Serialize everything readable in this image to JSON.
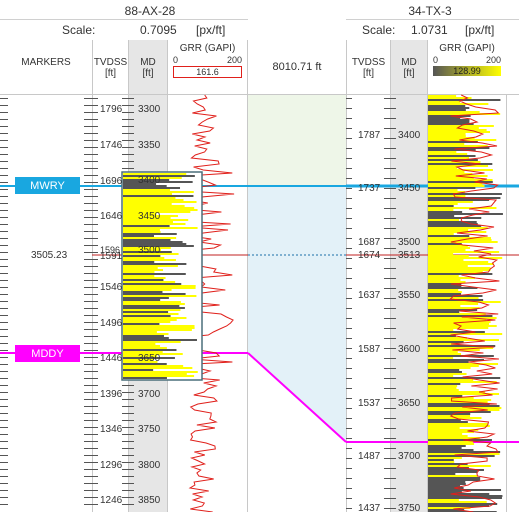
{
  "left_well": {
    "name": "88-AX-28",
    "scale_label": "Scale:",
    "scale_value": "0.7095",
    "scale_unit": "[px/ft]",
    "columns": {
      "markers": "MARKERS",
      "tvdss": "TVDSS",
      "tvdss_unit": "[ft]",
      "md": "MD",
      "md_unit": "[ft]",
      "grr": "GRR (GAPI)",
      "grr_readout": "161.6"
    },
    "tvdss_ticks": [
      "1796",
      "1746",
      "1696",
      "1646",
      "1596",
      "1591",
      "1546",
      "1496",
      "1446",
      "1396",
      "1346",
      "1296",
      "1246"
    ],
    "md_ticks": [
      "3300",
      "3350",
      "3400",
      "3450",
      "3500",
      "3650",
      "3700",
      "3750",
      "3800",
      "3850"
    ],
    "marker_depth": "3505.23"
  },
  "middle": {
    "distance_label": "8010.71 ft"
  },
  "right_well": {
    "name": "34-TX-3",
    "scale_label": "Scale:",
    "scale_value": "1.0731",
    "scale_unit": "[px/ft]",
    "columns": {
      "tvdss": "TVDSS",
      "tvdss_unit": "[ft]",
      "md": "MD",
      "md_unit": "[ft]",
      "grr": "GRR (GAPI)",
      "grr_min": "0",
      "grr_max": "200",
      "grr_readout": "128.99"
    },
    "tvdss_ticks": [
      "1787",
      "1737",
      "1687",
      "1674",
      "1637",
      "1587",
      "1537",
      "1487",
      "1437"
    ],
    "md_ticks": [
      "3400",
      "3450",
      "3500",
      "3513",
      "3550",
      "3600",
      "3650",
      "3700",
      "3750"
    ]
  },
  "left_grr_scale": {
    "min": "0",
    "max": "200"
  },
  "markers": [
    {
      "name": "MWRY",
      "color": "#19a7e0"
    },
    {
      "name": "MDDY",
      "color": "#ff00ff"
    }
  ],
  "colors": {
    "fill_yellow": "#ffff00",
    "curve_red": "#e0201b",
    "shale_dark": "#555555",
    "zone_top": "#eef6e8",
    "zone_main": "#e3f1f8",
    "mwry": "#19a7e0",
    "mddy": "#ff00ff"
  }
}
